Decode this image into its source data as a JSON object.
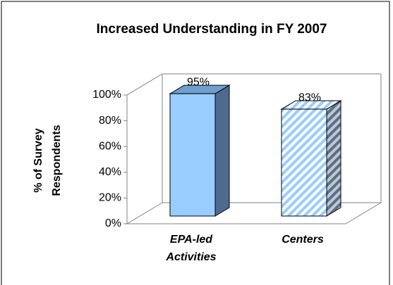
{
  "chart_data": {
    "type": "bar3d",
    "title": "Increased Understanding in FY 2007",
    "ylabel": "% of Survey Respondents",
    "categories": [
      "EPA-led Activities",
      "Centers"
    ],
    "values": [
      95,
      83
    ],
    "value_labels": [
      "95%",
      "83%"
    ],
    "colors": [
      "#99ccff",
      "#99ccff"
    ],
    "patterns": [
      "solid",
      "hatch"
    ],
    "ylim": [
      0,
      100
    ],
    "yticks": [
      {
        "value": 0,
        "label": "0%"
      },
      {
        "value": 20,
        "label": "20%"
      },
      {
        "value": 40,
        "label": "40%"
      },
      {
        "value": 60,
        "label": "60%"
      },
      {
        "value": 80,
        "label": "80%"
      },
      {
        "value": 100,
        "label": "100%"
      }
    ]
  }
}
